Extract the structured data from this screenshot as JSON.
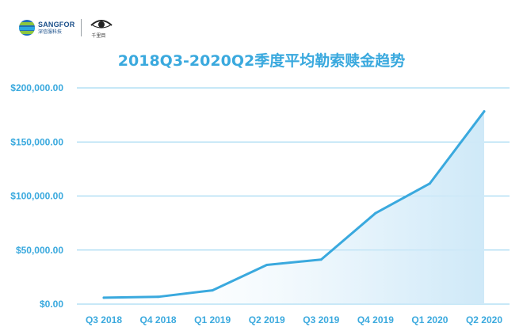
{
  "logos": {
    "brand_en": "SANGFOR",
    "brand_cn": "深信服科技",
    "partner_cn": "千里目",
    "brand_icon": "sangfor-globe-icon",
    "partner_icon": "eye-icon"
  },
  "chart_data": {
    "type": "area",
    "title": "2018Q3-2020Q2季度平均勒索赎金趋势",
    "xlabel": "",
    "ylabel": "",
    "categories": [
      "Q3 2018",
      "Q4 2018",
      "Q1 2019",
      "Q2 2019",
      "Q3 2019",
      "Q4 2019",
      "Q1 2020",
      "Q2 2020"
    ],
    "series": [
      {
        "values": [
          5973,
          6733,
          12762,
          36295,
          41198,
          84116,
          111605,
          178254
        ]
      }
    ],
    "ylim": [
      0,
      200000
    ],
    "yticks": [
      0,
      50000,
      100000,
      150000,
      200000
    ],
    "ytick_labels": [
      "$0.00",
      "$50,000.00",
      "$100,000.00",
      "$150,000.00",
      "$200,000.00"
    ],
    "grid": true,
    "legend": "none",
    "colors": {
      "line": "#3aa9de",
      "fill": "#cfe9f8",
      "grid": "#8fd0ef",
      "text": "#3aa9de"
    }
  }
}
